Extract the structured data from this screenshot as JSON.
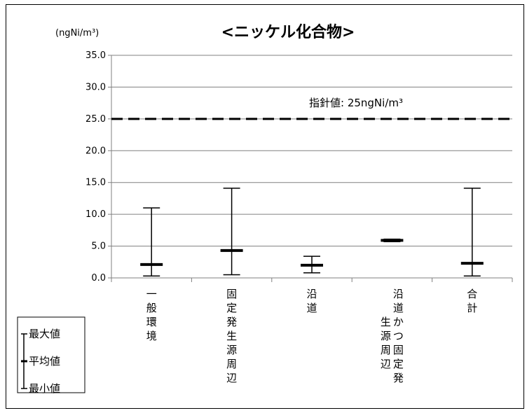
{
  "chart_data": {
    "type": "range",
    "title": "<ニッケル化合物>",
    "unit_label": "(ngNi/m³)",
    "ylim": [
      0,
      35
    ],
    "y_ticks": [
      "35.0",
      "30.0",
      "25.0",
      "20.0",
      "15.0",
      "10.0",
      "5.0",
      "0.0"
    ],
    "y_tick_values": [
      35,
      30,
      25,
      20,
      15,
      10,
      5,
      0
    ],
    "categories": [
      [
        "一",
        "般",
        "環",
        "境"
      ],
      [
        "固",
        "定",
        "発",
        "生",
        "源",
        "周",
        "辺"
      ],
      [
        "沿",
        "道"
      ],
      [
        [
          "沿",
          "道",
          "か",
          "つ",
          "固",
          "定",
          "発"
        ],
        [
          "生",
          "源",
          "周",
          "辺"
        ]
      ],
      [
        "合",
        "計"
      ]
    ],
    "series": [
      {
        "name": "最大値",
        "values": [
          11.0,
          14.1,
          3.4,
          6.1,
          14.1
        ]
      },
      {
        "name": "平均値",
        "values": [
          2.1,
          4.3,
          2.0,
          5.9,
          2.3
        ]
      },
      {
        "name": "最小値",
        "values": [
          0.3,
          0.5,
          0.8,
          5.7,
          0.3
        ]
      }
    ],
    "guideline": {
      "label": "指針値: 25ngNi/m³",
      "value": 25.0,
      "color": "#000000",
      "style": "dashed"
    },
    "grid": true,
    "legend_position": "bottom-left",
    "legend_items": [
      "最大値",
      "平均値",
      "最小値"
    ],
    "colors": {
      "grid": "#808080",
      "axis": "#808080",
      "marks": "#000000"
    }
  }
}
